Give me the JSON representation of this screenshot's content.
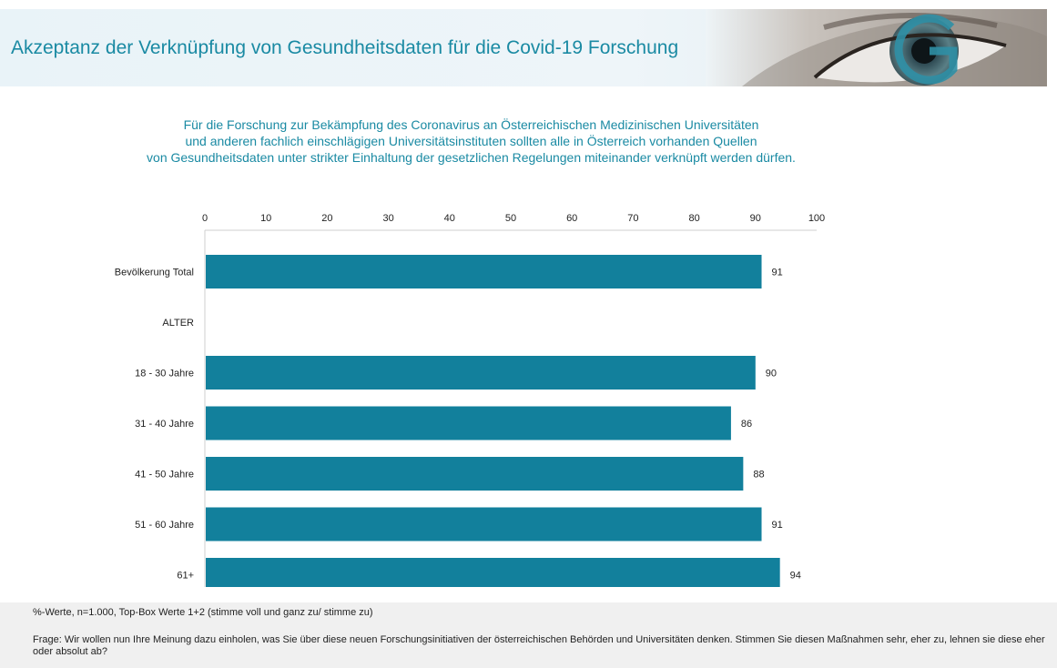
{
  "header": {
    "title": "Akzeptanz der Verknüpfung von Gesundheitsdaten für die Covid-19 Forschung",
    "logo_letter": "G"
  },
  "subtitle_lines": [
    "Für die Forschung zur Bekämpfung des Coronavirus an Österreichischen Medizinischen Universitäten",
    "und anderen fachlich einschlägigen Universitätsinstituten sollten alle in Österreich vorhanden Quellen",
    "von Gesundheitsdaten unter strikter Einhaltung der gesetzlichen Regelungen miteinander verknüpft werden dürfen."
  ],
  "chart_data": {
    "type": "bar",
    "orientation": "horizontal",
    "categories": [
      "Bevölkerung Total",
      "ALTER",
      "18 - 30 Jahre",
      "31 - 40 Jahre",
      "41 - 50 Jahre",
      "51 - 60 Jahre",
      "61+"
    ],
    "values": [
      91,
      null,
      90,
      86,
      88,
      91,
      94
    ],
    "xlim": [
      0,
      100
    ],
    "xticks": [
      0,
      10,
      20,
      30,
      40,
      50,
      60,
      70,
      80,
      90,
      100
    ],
    "axis_position": "top",
    "grid": false,
    "bar_color": "#12809c"
  },
  "footer": {
    "note": "%-Werte, n=1.000, Top-Box Werte 1+2 (stimme voll und ganz zu/ stimme zu)",
    "question": "Frage: Wir wollen nun Ihre Meinung dazu einholen, was Sie über diese neuen Forschungsinitiativen der österreichischen Behörden und Universitäten denken. Stimmen Sie diesen Maßnahmen sehr, eher zu, lehnen sie diese eher oder absolut ab?"
  },
  "colors": {
    "accent": "#1a8aa3",
    "bar": "#12809c"
  }
}
